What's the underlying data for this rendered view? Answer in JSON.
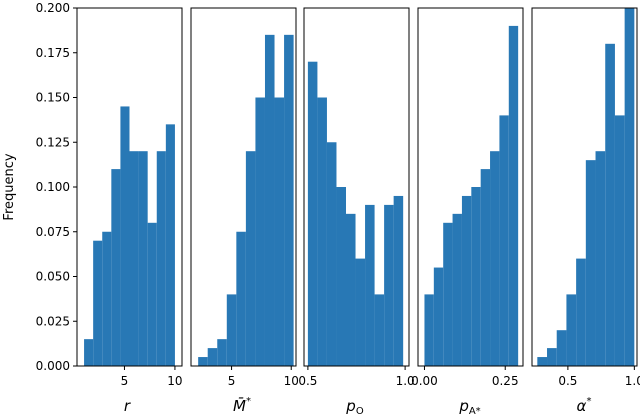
{
  "chart_data": [
    {
      "type": "bar",
      "xlabel": "r",
      "ylabel": "Frequency",
      "ylim": [
        0,
        0.2
      ],
      "xlim": [
        0.3,
        10.7
      ],
      "xticks": [
        5,
        10
      ],
      "bin_edges": [
        1.0,
        1.9,
        2.8,
        3.7,
        4.6,
        5.5,
        6.4,
        7.3,
        8.2,
        9.1,
        10.0
      ],
      "values": [
        0.015,
        0.07,
        0.075,
        0.11,
        0.145,
        0.12,
        0.12,
        0.08,
        0.12,
        0.135
      ],
      "color": "#2878b5"
    },
    {
      "type": "bar",
      "xlabel": "M̄*",
      "xlim": [
        1.6,
        10.4
      ],
      "xticks": [
        5,
        10
      ],
      "bin_edges": [
        2.2,
        3.0,
        3.8,
        4.6,
        5.4,
        6.2,
        7.0,
        7.8,
        8.6,
        9.4,
        10.2
      ],
      "values": [
        0.005,
        0.01,
        0.015,
        0.04,
        0.075,
        0.12,
        0.15,
        0.185,
        0.15,
        0.185
      ],
      "color": "#2878b5"
    },
    {
      "type": "bar",
      "xlabel": "pO",
      "xlim": [
        0.48,
        1.02
      ],
      "xticks": [
        0.5,
        1.0
      ],
      "xticklabels": [
        "0.5",
        "1.0"
      ],
      "bin_edges": [
        0.5,
        0.549,
        0.598,
        0.647,
        0.696,
        0.745,
        0.794,
        0.843,
        0.892,
        0.941,
        0.99
      ],
      "values": [
        0.17,
        0.15,
        0.125,
        0.1,
        0.085,
        0.06,
        0.09,
        0.04,
        0.09,
        0.095
      ],
      "color": "#2878b5"
    },
    {
      "type": "bar",
      "xlabel": "pA*",
      "xlim": [
        -0.02,
        0.305
      ],
      "xticks": [
        0.0,
        0.25
      ],
      "xticklabels": [
        "0.00",
        "0.25"
      ],
      "bin_edges": [
        0.0,
        0.029,
        0.058,
        0.087,
        0.116,
        0.145,
        0.174,
        0.203,
        0.232,
        0.261,
        0.29
      ],
      "values": [
        0.04,
        0.055,
        0.08,
        0.085,
        0.095,
        0.1,
        0.11,
        0.12,
        0.14,
        0.19
      ],
      "color": "#2878b5"
    },
    {
      "type": "bar",
      "xlabel": "α*",
      "xlim": [
        0.23,
        1.02
      ],
      "xticks": [
        0.5,
        1.0
      ],
      "xticklabels": [
        "0.5",
        "1.0"
      ],
      "bin_edges": [
        0.27,
        0.343,
        0.416,
        0.489,
        0.562,
        0.635,
        0.708,
        0.781,
        0.854,
        0.927,
        1.0
      ],
      "values": [
        0.005,
        0.01,
        0.02,
        0.04,
        0.06,
        0.115,
        0.12,
        0.18,
        0.14,
        0.2
      ],
      "color": "#2878b5"
    }
  ],
  "yticklabels": [
    "0.000",
    "0.025",
    "0.050",
    "0.075",
    "0.100",
    "0.125",
    "0.150",
    "0.175",
    "0.200"
  ],
  "yticks": [
    0,
    0.025,
    0.05,
    0.075,
    0.1,
    0.125,
    0.15,
    0.175,
    0.2
  ],
  "ylabel_text": "Frequency",
  "xlabels": {
    "p0_main": "r",
    "p1_main": "M̄",
    "p1_sup": "*",
    "p2_main": "p",
    "p2_sub": "O",
    "p3_main": "p",
    "p3_sub": "A*",
    "p4_main": "α",
    "p4_sup": "*"
  }
}
